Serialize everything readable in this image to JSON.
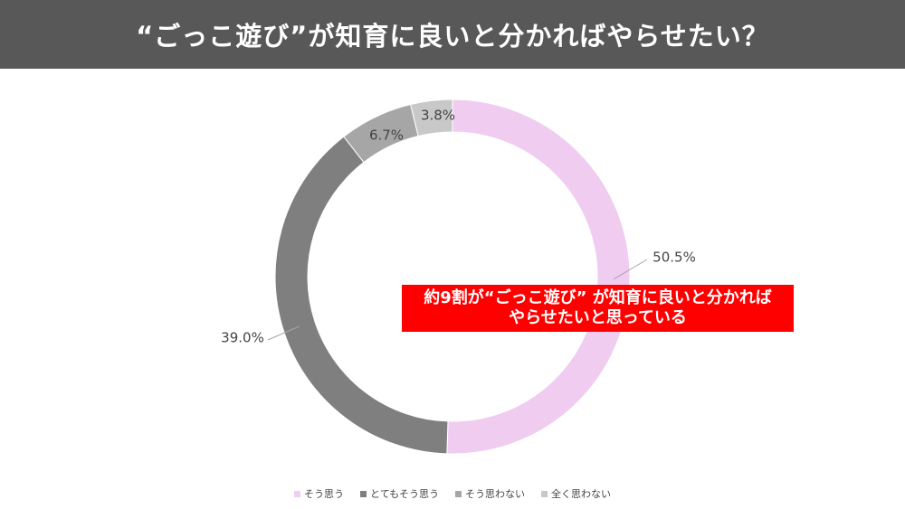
{
  "header": {
    "title": "“ごっこ遊び”が知育に良いと分かればやらせたい？"
  },
  "callout": {
    "line1": "約9割が“ごっこ遊び” が知育に良いと分かれば",
    "line2": "やらせたいと思っている"
  },
  "chart_data": {
    "type": "pie",
    "categories": [
      "そう思う",
      "とてもそう思う",
      "そう思わない",
      "全く思わない"
    ],
    "values": [
      50.5,
      39.0,
      6.7,
      3.8
    ],
    "data_labels": [
      "50.5%",
      "39.0%",
      "6.7%",
      "3.8%"
    ],
    "colors": [
      "#f0cdf0",
      "#7f7f7f",
      "#a6a6a6",
      "#c8c8c8"
    ],
    "hole": true,
    "legend_position": "bottom"
  }
}
